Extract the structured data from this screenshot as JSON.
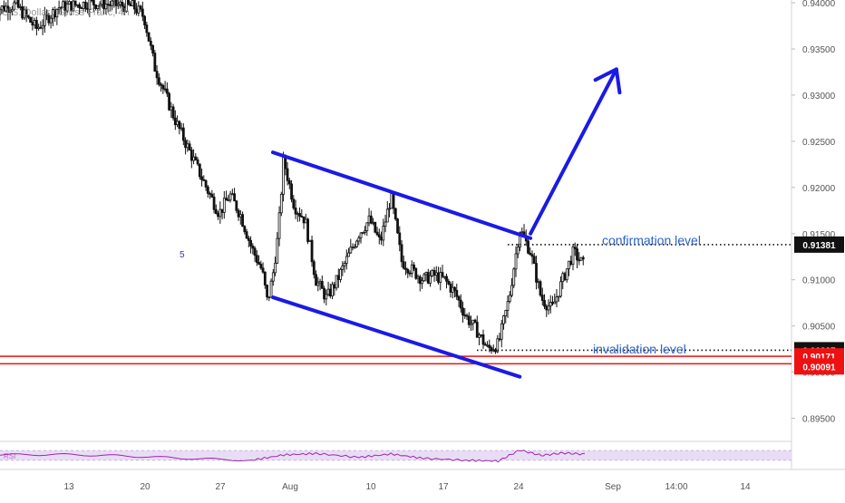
{
  "title": "U.S. Dollar / Swiss Franc, 4h",
  "colors": {
    "candle": "#111111",
    "channel": "#1a1ae6",
    "support": "#ee1111",
    "annotation": "#2a62c4",
    "rsi_line": "#9c27b0",
    "rsi_band": "#e9ddf5",
    "axis_text": "#555555",
    "tag_dark": "#111111",
    "tag_red": "#ee1111"
  },
  "annotations": {
    "confirmation_label": "confirmation level",
    "invalidation_label": "invalidation level",
    "marker": "5",
    "rsi_label": "RSI"
  },
  "price_tags": {
    "confirmation": "0.91381",
    "invalidation": "0.90237",
    "support_upper": "0.90171",
    "support_lower": "0.90091"
  },
  "chart_data": {
    "type": "candlestick",
    "title": "U.S. Dollar / Swiss Franc, 4h",
    "y_ticks": [
      "0.94000",
      "0.93500",
      "0.93000",
      "0.92500",
      "0.92000",
      "0.91500",
      "0.91000",
      "0.90500",
      "0.90000",
      "0.89500"
    ],
    "x_ticks": [
      "13",
      "20",
      "27",
      "Aug",
      "10",
      "17",
      "24",
      "Sep",
      "14:00",
      "14"
    ],
    "ylim": [
      0.8925,
      0.9403
    ],
    "grid": false,
    "levels": {
      "confirmation": 0.91381,
      "invalidation": 0.90237,
      "support_upper": 0.90171,
      "support_lower": 0.90091
    },
    "channel": {
      "upper": {
        "from": [
          "Aug 1",
          0.9238
        ],
        "to": [
          "Aug 25",
          0.9145
        ]
      },
      "lower": {
        "from": [
          "Aug 1",
          0.9081
        ],
        "to": [
          "Aug 24",
          0.8995
        ]
      }
    },
    "projection_arrow": {
      "from": [
        "Aug 25",
        0.915
      ],
      "to": [
        "Sep 2",
        0.9328
      ]
    },
    "price_path": [
      [
        6,
        0.9392
      ],
      [
        8,
        0.9398
      ],
      [
        10,
        0.9372
      ],
      [
        12,
        0.9395
      ],
      [
        15,
        0.94
      ],
      [
        17,
        0.9398
      ],
      [
        19,
        0.9396
      ],
      [
        20,
        0.9385
      ],
      [
        21,
        0.933
      ],
      [
        22,
        0.93
      ],
      [
        23,
        0.927
      ],
      [
        24,
        0.9245
      ],
      [
        25,
        0.922
      ],
      [
        26,
        0.9195
      ],
      [
        27,
        0.9172
      ],
      [
        28,
        0.9192
      ],
      [
        29,
        0.917
      ],
      [
        30,
        0.9135
      ],
      [
        31,
        0.911
      ],
      [
        31.5,
        0.9075
      ],
      [
        32,
        0.9105
      ],
      [
        32.5,
        0.915
      ],
      [
        33,
        0.923
      ],
      [
        34,
        0.918
      ],
      [
        35,
        0.9165
      ],
      [
        36,
        0.91
      ],
      [
        37,
        0.908
      ],
      [
        38,
        0.91
      ],
      [
        39,
        0.9125
      ],
      [
        40,
        0.915
      ],
      [
        41,
        0.9165
      ],
      [
        42,
        0.914
      ],
      [
        43,
        0.919
      ],
      [
        44,
        0.912
      ],
      [
        45,
        0.911
      ],
      [
        46,
        0.91
      ],
      [
        47,
        0.9105
      ],
      [
        48,
        0.91
      ],
      [
        49,
        0.9085
      ],
      [
        50,
        0.906
      ],
      [
        51,
        0.9045
      ],
      [
        52,
        0.9025
      ],
      [
        53,
        0.903
      ],
      [
        54,
        0.908
      ],
      [
        55,
        0.9155
      ],
      [
        56,
        0.913
      ],
      [
        57,
        0.908
      ],
      [
        58,
        0.9068
      ],
      [
        59,
        0.91
      ],
      [
        60,
        0.913
      ],
      [
        61,
        0.9115
      ]
    ],
    "rsi": {
      "range": [
        0,
        100
      ],
      "bands": [
        30,
        70
      ],
      "path": [
        [
          0,
          58
        ],
        [
          6,
          52
        ],
        [
          12,
          54
        ],
        [
          18,
          48
        ],
        [
          24,
          38
        ],
        [
          30,
          30
        ],
        [
          33,
          52
        ],
        [
          36,
          58
        ],
        [
          40,
          42
        ],
        [
          43,
          56
        ],
        [
          46,
          38
        ],
        [
          50,
          30
        ],
        [
          53,
          27
        ],
        [
          55,
          72
        ],
        [
          57,
          50
        ],
        [
          59,
          60
        ],
        [
          61,
          55
        ]
      ]
    }
  }
}
